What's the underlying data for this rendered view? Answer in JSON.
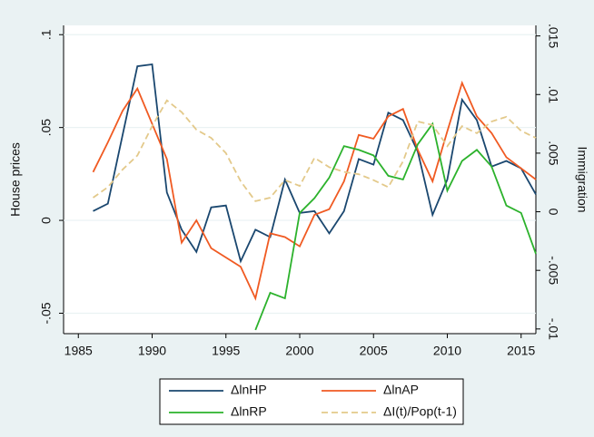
{
  "chart_data": {
    "type": "line",
    "x": [
      1986,
      1987,
      1988,
      1989,
      1990,
      1991,
      1992,
      1993,
      1994,
      1995,
      1996,
      1997,
      1998,
      1999,
      2000,
      2001,
      2002,
      2003,
      2004,
      2005,
      2006,
      2007,
      2008,
      2009,
      2010,
      2011,
      2012,
      2013,
      2014,
      2015,
      2016
    ],
    "xlim": [
      1984,
      2016
    ],
    "xticks": [
      1985,
      1990,
      1995,
      2000,
      2005,
      2010,
      2015
    ],
    "ylim": [
      -0.061,
      0.105
    ],
    "yticks": [
      {
        "value": -0.05,
        "label": "-.05"
      },
      0,
      {
        "value": 0.05,
        "label": ".05"
      },
      {
        "value": 0.1,
        "label": ".1"
      }
    ],
    "y2lim": [
      -0.0104,
      0.0159
    ],
    "y2ticks": [
      {
        "value": -0.01,
        "label": "-.01"
      },
      {
        "value": -0.005,
        "label": "-.005"
      },
      0,
      {
        "value": 0.005,
        "label": ".005"
      },
      {
        "value": 0.01,
        "label": ".01"
      },
      {
        "value": 0.015,
        "label": ".015"
      }
    ],
    "ylabel": "House prices",
    "y2label": "Immigration",
    "grid": true,
    "series": [
      {
        "name": "ΔlnHP",
        "color": "#1a476f",
        "values": [
          0.005,
          0.009,
          0.046,
          0.083,
          0.084,
          0.015,
          -0.005,
          -0.017,
          0.007,
          0.008,
          -0.022,
          -0.005,
          -0.009,
          0.022,
          0.004,
          0.005,
          -0.007,
          0.005,
          0.033,
          0.03,
          0.058,
          0.054,
          0.037,
          0.003,
          0.022,
          0.065,
          0.054,
          0.029,
          0.032,
          0.028,
          0.014
        ]
      },
      {
        "name": "ΔlnAP",
        "color": "#f05a22",
        "values": [
          0.026,
          0.042,
          0.059,
          0.071,
          0.052,
          0.033,
          -0.012,
          0,
          -0.015,
          -0.02,
          -0.025,
          -0.042,
          -0.007,
          -0.009,
          -0.014,
          0.003,
          0.006,
          0.021,
          0.046,
          0.044,
          0.056,
          0.06,
          0.038,
          0.021,
          0.048,
          0.074,
          0.056,
          0.047,
          0.034,
          0.028,
          0.022
        ]
      },
      {
        "name": "ΔlnRP",
        "color": "#2cb22c",
        "values": [
          null,
          null,
          null,
          null,
          null,
          null,
          null,
          null,
          null,
          null,
          null,
          -0.059,
          -0.039,
          -0.042,
          0.004,
          0.012,
          0.023,
          0.04,
          0.038,
          0.035,
          0.024,
          0.022,
          0.041,
          0.052,
          0.016,
          0.032,
          0.038,
          0.029,
          0.008,
          0.004,
          -0.018
        ]
      },
      {
        "name": "ΔI(t)/Pop(t-1)",
        "color": "#e3c98a",
        "axis": "y2",
        "dash": true,
        "values": [
          0.0012,
          0.0021,
          0.0036,
          0.0048,
          0.0073,
          0.0095,
          0.0085,
          0.007,
          0.0063,
          0.005,
          0.0026,
          0.0009,
          0.0012,
          0.0027,
          0.0022,
          0.0046,
          0.0038,
          0.0034,
          0.0032,
          0.0027,
          0.0021,
          0.0043,
          0.0077,
          0.0074,
          0.0056,
          0.0073,
          0.0067,
          0.0077,
          0.0081,
          0.0069,
          0.0063
        ]
      }
    ]
  }
}
